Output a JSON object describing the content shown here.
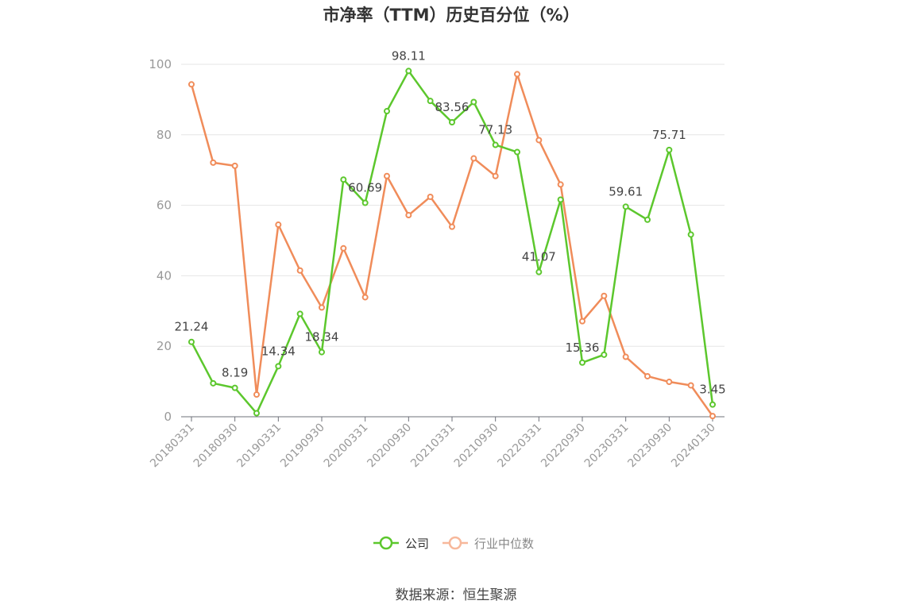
{
  "chart_data": {
    "type": "line",
    "title": "市净率（TTM）历史百分位（%）",
    "source": "数据来源：恒生聚源",
    "ylim": [
      0,
      100
    ],
    "yticks": [
      0,
      20,
      40,
      60,
      80,
      100
    ],
    "grid": true,
    "legend_position": "bottom-center",
    "x": [
      "20180331",
      "20180630",
      "20180930",
      "20181231",
      "20190331",
      "20190630",
      "20190930",
      "20191231",
      "20200331",
      "20200630",
      "20200930",
      "20201231",
      "20210331",
      "20210630",
      "20210930",
      "20211231",
      "20220331",
      "20220630",
      "20220930",
      "20221231",
      "20230331",
      "20230630",
      "20230930",
      "20231231",
      "20240130"
    ],
    "xtick_labels": [
      "20180331",
      "20180930",
      "20190331",
      "20190930",
      "20200331",
      "20200930",
      "20210331",
      "20210930",
      "20220331",
      "20220930",
      "20230331",
      "20230930",
      "20240130"
    ],
    "series": [
      {
        "name": "公司",
        "color": "#5cc72d",
        "values": [
          21.24,
          9.5,
          8.19,
          1.0,
          14.34,
          29.2,
          18.34,
          67.3,
          60.69,
          86.7,
          98.11,
          89.6,
          83.56,
          89.3,
          77.13,
          75.1,
          41.07,
          61.6,
          15.36,
          17.6,
          59.61,
          55.9,
          75.71,
          51.7,
          3.45
        ],
        "labels": {
          "0": "21.24",
          "2": "8.19",
          "4": "14.34",
          "6": "18.34",
          "8": "60.69",
          "10": "98.11",
          "12": "83.56",
          "14": "77.13",
          "16": "41.07",
          "18": "15.36",
          "20": "59.61",
          "22": "75.71",
          "24": "3.45"
        }
      },
      {
        "name": "行业中位数",
        "color": "#f08c5a",
        "legend_color": "#f7b89b",
        "values": [
          94.3,
          72.1,
          71.2,
          6.3,
          54.5,
          41.5,
          31.0,
          47.8,
          33.9,
          68.3,
          57.2,
          62.4,
          53.9,
          73.3,
          68.3,
          97.2,
          78.5,
          65.9,
          27.1,
          34.3,
          17.0,
          11.5,
          9.9,
          8.9,
          0.2
        ]
      }
    ]
  }
}
